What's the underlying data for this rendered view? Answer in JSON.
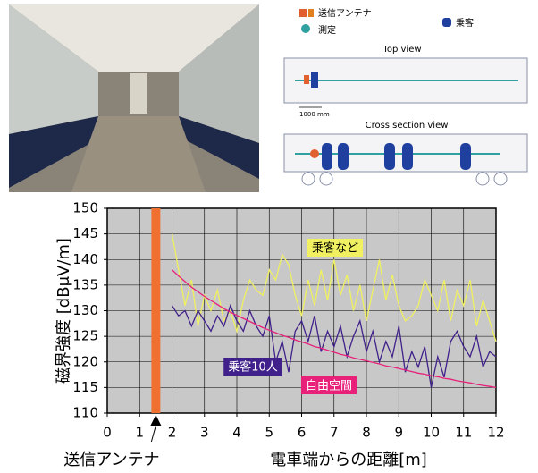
{
  "diagram": {
    "legend_antenna": "送信アンテナ",
    "legend_passenger": "乗客",
    "legend_measure": "測定",
    "top_view": "Top view",
    "scale": "1000 mm",
    "cross_view": "Cross section view"
  },
  "chart_data": {
    "type": "line",
    "xlabel": "電車端からの距離[m]",
    "ylabel": "磁界強度 [dBμV/m]",
    "antenna_label": "送信アンテナ",
    "antenna_x": 1.5,
    "antenna_color": "#f07030",
    "xlim": [
      0,
      12
    ],
    "xticks": [
      0,
      1,
      2,
      3,
      4,
      5,
      6,
      7,
      8,
      9,
      10,
      11,
      12
    ],
    "ylim": [
      110,
      150
    ],
    "yticks": [
      110,
      115,
      120,
      125,
      130,
      135,
      140,
      145,
      150
    ],
    "grid": true,
    "x": [
      2,
      2.2,
      2.4,
      2.6,
      2.8,
      3,
      3.2,
      3.4,
      3.6,
      3.8,
      4,
      4.2,
      4.4,
      4.6,
      4.8,
      5,
      5.2,
      5.4,
      5.6,
      5.8,
      6,
      6.2,
      6.4,
      6.6,
      6.8,
      7,
      7.2,
      7.4,
      7.6,
      7.8,
      8,
      8.2,
      8.4,
      8.6,
      8.8,
      9,
      9.2,
      9.4,
      9.6,
      9.8,
      10,
      10.2,
      10.4,
      10.6,
      10.8,
      11,
      11.2,
      11.4,
      11.6,
      11.8,
      12
    ],
    "series": [
      {
        "name": "乗客など",
        "color": "#f0f060",
        "values": [
          145,
          138,
          131,
          136,
          127,
          133,
          130,
          134,
          128,
          130,
          126,
          132,
          136,
          134,
          133,
          138,
          136,
          141,
          139,
          133,
          129,
          136,
          131,
          138,
          132,
          140,
          133,
          137,
          130,
          135,
          128,
          134,
          140,
          132,
          137,
          131,
          128,
          129,
          131,
          136,
          133,
          130,
          136,
          128,
          134,
          131,
          136,
          127,
          132,
          128,
          124
        ]
      },
      {
        "name": "乗客10人",
        "color": "#40208a",
        "values": [
          131,
          129,
          130,
          127,
          130,
          128,
          126,
          129,
          127,
          131,
          128,
          126,
          130,
          127,
          125,
          129,
          120,
          124,
          118,
          126,
          128,
          124,
          129,
          122,
          126,
          123,
          127,
          121,
          125,
          128,
          122,
          126,
          120,
          124,
          121,
          127,
          118,
          122,
          119,
          123,
          115,
          121,
          117,
          124,
          126,
          123,
          121,
          125,
          119,
          122,
          121
        ]
      },
      {
        "name": "自由空間",
        "color": "#e8207a",
        "values": [
          138,
          136.8,
          135.7,
          134.6,
          133.7,
          132.8,
          132,
          131.2,
          130.4,
          129.7,
          129.1,
          128.5,
          127.9,
          127.3,
          126.7,
          126.2,
          125.7,
          125.2,
          124.8,
          124.3,
          123.9,
          123.5,
          123,
          122.7,
          122.3,
          121.9,
          121.5,
          121.2,
          120.8,
          120.5,
          120.2,
          119.9,
          119.6,
          119.2,
          119,
          118.7,
          118.4,
          118.1,
          117.8,
          117.6,
          117.3,
          117.1,
          116.8,
          116.6,
          116.3,
          116.1,
          115.9,
          115.6,
          115.4,
          115.2,
          115
        ]
      }
    ]
  }
}
